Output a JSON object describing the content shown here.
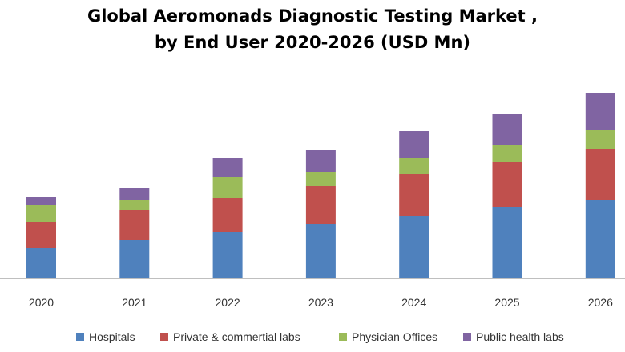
{
  "chart_data": {
    "type": "bar",
    "stacked": true,
    "title": "Global Aeromonads Diagnostic Testing Market ,",
    "subtitle": "by End User 2020-2026  (USD Mn)",
    "categories": [
      "2020",
      "2021",
      "2022",
      "2023",
      "2024",
      "2025",
      "2026"
    ],
    "series": [
      {
        "name": "Hospitals",
        "color": "#4F81BD",
        "values": [
          38,
          48,
          58,
          68,
          78,
          89,
          98
        ]
      },
      {
        "name": "Private & commertial  labs",
        "color": "#C0504D",
        "values": [
          32,
          37,
          42,
          47,
          53,
          56,
          64
        ]
      },
      {
        "name": "Physician Offices",
        "color": "#9BBB59",
        "values": [
          22,
          13,
          27,
          18,
          20,
          22,
          24
        ]
      },
      {
        "name": "Public health labs",
        "color": "#8064A2",
        "values": [
          10,
          15,
          23,
          27,
          33,
          38,
          46
        ]
      }
    ],
    "xlabel": "",
    "ylabel": "",
    "ylim": [
      0,
      240
    ],
    "legend_position": "bottom",
    "grid": false
  }
}
